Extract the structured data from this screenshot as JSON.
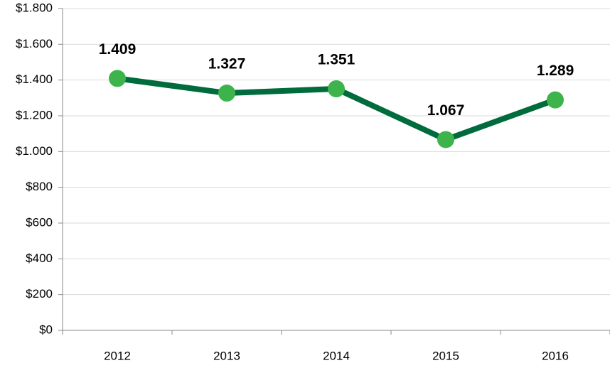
{
  "chart_data": {
    "type": "line",
    "categories": [
      "2012",
      "2013",
      "2014",
      "2015",
      "2016"
    ],
    "series": [
      {
        "color": "#006b3c",
        "marker_color": "#3cb44b",
        "values": [
          1409,
          1327,
          1351,
          1067,
          1289
        ],
        "value_labels": [
          "1.409",
          "1.327",
          "1.351",
          "1.067",
          "1.289"
        ]
      }
    ],
    "ylim": [
      0,
      1800
    ],
    "yticks": [
      {
        "value": 0,
        "label": "$0"
      },
      {
        "value": 200,
        "label": "$200"
      },
      {
        "value": 400,
        "label": "$400"
      },
      {
        "value": 600,
        "label": "$600"
      },
      {
        "value": 800,
        "label": "$800"
      },
      {
        "value": 1000,
        "label": "$1.000"
      },
      {
        "value": 1200,
        "label": "$1.200"
      },
      {
        "value": 1400,
        "label": "$1.400"
      },
      {
        "value": 1600,
        "label": "$1.600"
      },
      {
        "value": 1800,
        "label": "$1.800"
      }
    ],
    "grid": true
  }
}
